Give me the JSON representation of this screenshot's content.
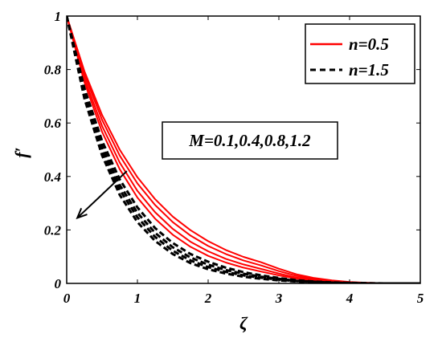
{
  "chart_data": {
    "type": "line",
    "xlabel": "ζ",
    "ylabel": "f′",
    "xlim": [
      0,
      5
    ],
    "ylim": [
      0,
      1
    ],
    "xticks": [
      "0",
      "1",
      "2",
      "3",
      "4",
      "5"
    ],
    "yticks": [
      "0",
      "0.2",
      "0.4",
      "0.6",
      "0.8",
      "1"
    ],
    "grid": false,
    "legend": {
      "position": "top-right",
      "entries": [
        {
          "name": "n=0.5",
          "color": "#ff0000",
          "style": "solid"
        },
        {
          "name": "n=1.5",
          "color": "#000000",
          "style": "dashed"
        }
      ]
    },
    "annotation": {
      "text": "M=0.1,0.4,0.8,1.2",
      "arrow_from": [
        0.85,
        0.42
      ],
      "arrow_to": [
        0.15,
        0.245
      ]
    },
    "x": [
      0,
      0.25,
      0.5,
      0.75,
      1,
      1.25,
      1.5,
      1.75,
      2,
      2.25,
      2.5,
      2.75,
      3,
      3.25,
      3.5,
      3.75,
      4,
      4.25,
      4.5,
      4.75,
      5
    ],
    "series": [
      {
        "group": "n=0.5",
        "M": 0.1,
        "values": [
          1,
          0.794,
          0.63,
          0.5,
          0.397,
          0.315,
          0.25,
          0.199,
          0.158,
          0.125,
          0.099,
          0.079,
          0.055,
          0.034,
          0.02,
          0.011,
          0.005,
          0.002,
          0.001,
          0,
          0
        ]
      },
      {
        "group": "n=0.5",
        "M": 0.4,
        "values": [
          1,
          0.782,
          0.612,
          0.478,
          0.374,
          0.293,
          0.229,
          0.179,
          0.14,
          0.11,
          0.086,
          0.067,
          0.046,
          0.028,
          0.016,
          0.009,
          0.004,
          0.002,
          0.001,
          0,
          0
        ]
      },
      {
        "group": "n=0.5",
        "M": 0.8,
        "values": [
          1,
          0.767,
          0.589,
          0.452,
          0.346,
          0.266,
          0.204,
          0.156,
          0.12,
          0.092,
          0.071,
          0.054,
          0.037,
          0.022,
          0.013,
          0.007,
          0.003,
          0.001,
          0.001,
          0,
          0
        ]
      },
      {
        "group": "n=0.5",
        "M": 1.2,
        "values": [
          1,
          0.753,
          0.567,
          0.427,
          0.321,
          0.242,
          0.182,
          0.137,
          0.103,
          0.078,
          0.059,
          0.044,
          0.03,
          0.018,
          0.01,
          0.005,
          0.002,
          0.001,
          0,
          0,
          0
        ]
      },
      {
        "group": "n=1.5",
        "M": 0.1,
        "values": [
          1,
          0.73,
          0.533,
          0.389,
          0.284,
          0.207,
          0.151,
          0.11,
          0.081,
          0.059,
          0.042,
          0.03,
          0.02,
          0.012,
          0.007,
          0.004,
          0.002,
          0.001,
          0,
          0,
          0
        ]
      },
      {
        "group": "n=1.5",
        "M": 0.4,
        "values": [
          1,
          0.717,
          0.513,
          0.368,
          0.264,
          0.189,
          0.135,
          0.097,
          0.07,
          0.05,
          0.036,
          0.025,
          0.017,
          0.01,
          0.006,
          0.003,
          0.001,
          0,
          0,
          0,
          0
        ]
      },
      {
        "group": "n=1.5",
        "M": 0.8,
        "values": [
          1,
          0.705,
          0.497,
          0.35,
          0.247,
          0.174,
          0.122,
          0.086,
          0.061,
          0.043,
          0.03,
          0.021,
          0.014,
          0.008,
          0.005,
          0.002,
          0.001,
          0,
          0,
          0,
          0
        ]
      },
      {
        "group": "n=1.5",
        "M": 1.2,
        "values": [
          1,
          0.692,
          0.479,
          0.331,
          0.229,
          0.159,
          0.11,
          0.076,
          0.053,
          0.037,
          0.025,
          0.017,
          0.011,
          0.007,
          0.004,
          0.002,
          0.001,
          0,
          0,
          0,
          0
        ]
      }
    ]
  }
}
